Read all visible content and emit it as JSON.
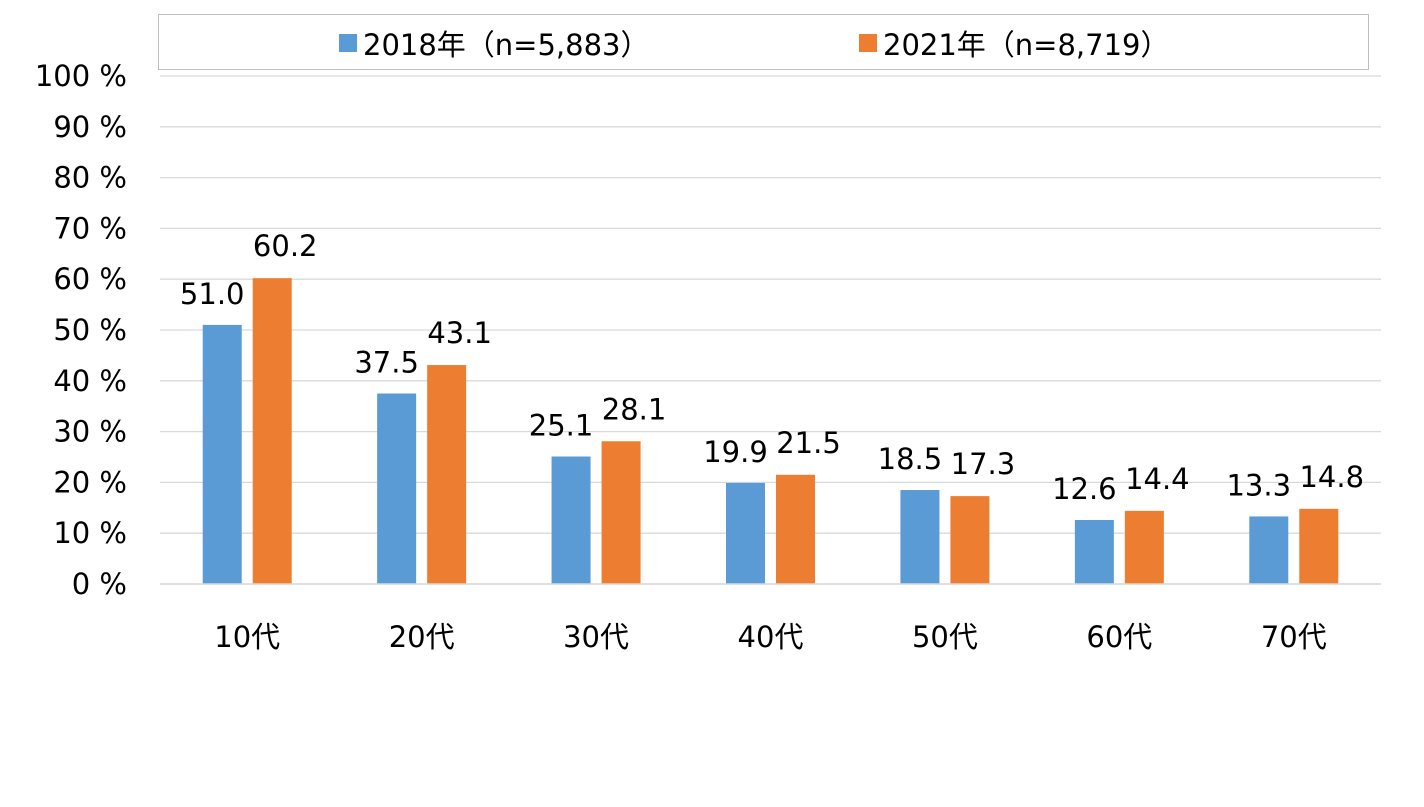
{
  "chart_data": {
    "type": "bar",
    "categories": [
      "10代",
      "20代",
      "30代",
      "40代",
      "50代",
      "60代",
      "70代"
    ],
    "series": [
      {
        "name": "2018年（n=5,883）",
        "color": "#5b9bd5",
        "values": [
          51.0,
          37.5,
          25.1,
          19.9,
          18.5,
          12.6,
          13.3
        ]
      },
      {
        "name": "2021年（n=8,719）",
        "color": "#ed7d31",
        "values": [
          60.2,
          43.1,
          28.1,
          21.5,
          17.3,
          14.4,
          14.8
        ]
      }
    ],
    "yticks": [
      "0 %",
      "10 %",
      "20 %",
      "30 %",
      "40 %",
      "50 %",
      "60 %",
      "70 %",
      "80 %",
      "90 %",
      "100 %"
    ],
    "ylim": [
      0,
      100
    ],
    "grid": true,
    "legend_position": "top"
  }
}
